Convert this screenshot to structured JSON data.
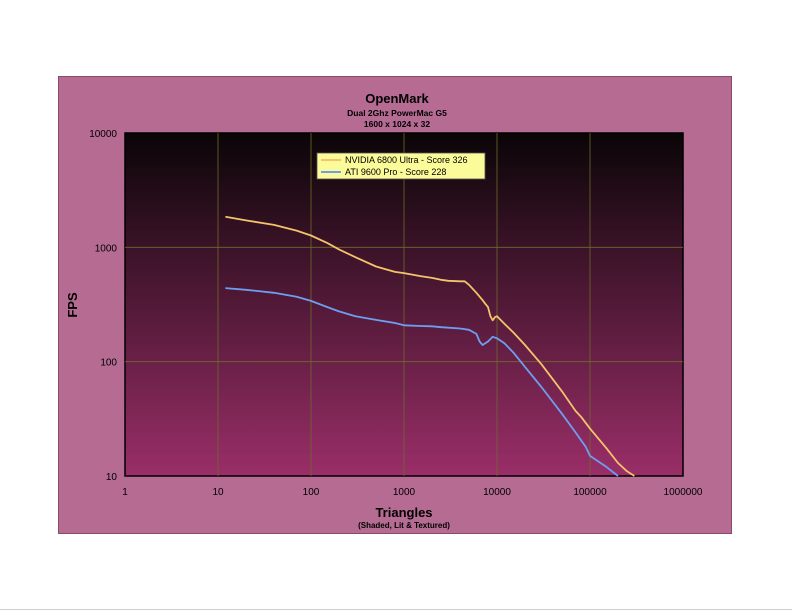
{
  "chart_data": {
    "type": "line",
    "title": "OpenMark",
    "subtitle_lines": [
      "Dual 2Ghz PowerMac G5",
      "1600 x 1024 x 32"
    ],
    "xlabel": "Triangles",
    "xlabel_sub": "(Shaded, Lit & Textured)",
    "ylabel": "FPS",
    "x_scale": "log",
    "y_scale": "log",
    "xlim": [
      1,
      1000000
    ],
    "ylim": [
      10,
      10000
    ],
    "x_ticks": [
      "1",
      "10",
      "100",
      "1000",
      "10000",
      "100000",
      "1000000"
    ],
    "y_ticks": [
      "10000",
      "1000",
      "100",
      "10"
    ],
    "grid": true,
    "legend_position": "top-center",
    "colors": {
      "panel": "#b56b92",
      "plot_top": "#0a0507",
      "plot_bottom": "#9a2e68",
      "grid": "#6f6a2a",
      "legend_bg": "#fbfb9a"
    },
    "series": [
      {
        "name": "NVIDIA 6800 Ultra - Score 326",
        "color": "#f5c36a",
        "x": [
          12,
          20,
          40,
          70,
          100,
          150,
          200,
          300,
          500,
          800,
          1000,
          1500,
          2000,
          2500,
          3000,
          4000,
          4500,
          5000,
          6000,
          7000,
          7500,
          8000,
          8500,
          9000,
          9500,
          10000,
          12000,
          15000,
          20000,
          30000,
          50000,
          70000,
          80000,
          100000,
          150000,
          200000,
          250000,
          300000
        ],
        "values": [
          1850,
          1720,
          1570,
          1400,
          1270,
          1090,
          960,
          820,
          680,
          610,
          595,
          560,
          540,
          520,
          510,
          505,
          505,
          470,
          400,
          345,
          320,
          300,
          250,
          230,
          245,
          250,
          215,
          180,
          140,
          95,
          55,
          37,
          33,
          26,
          17.5,
          13,
          11,
          10
        ]
      },
      {
        "name": "ATI 9600 Pro - Score 228",
        "color": "#6f9ef0",
        "x": [
          12,
          20,
          40,
          70,
          100,
          150,
          200,
          300,
          500,
          800,
          1000,
          1500,
          2000,
          2500,
          3000,
          4000,
          5000,
          6000,
          6500,
          7000,
          8000,
          9000,
          10000,
          12000,
          15000,
          20000,
          30000,
          50000,
          70000,
          90000,
          100000,
          150000,
          200000
        ],
        "values": [
          440,
          425,
          400,
          370,
          340,
          300,
          275,
          250,
          232,
          218,
          208,
          205,
          204,
          200,
          198,
          195,
          190,
          175,
          150,
          140,
          150,
          165,
          160,
          145,
          120,
          90,
          60,
          35,
          24,
          18,
          15,
          12,
          10
        ]
      }
    ]
  }
}
